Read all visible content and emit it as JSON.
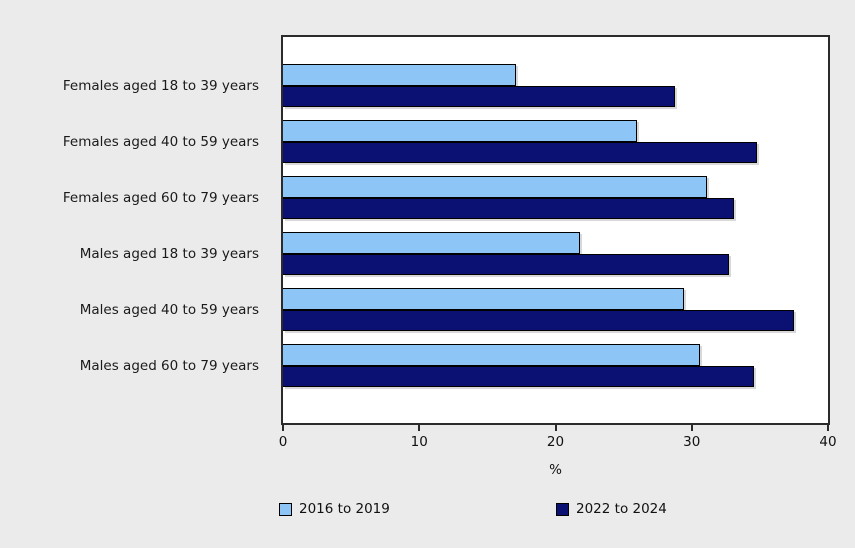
{
  "chart_data": {
    "type": "bar",
    "orientation": "horizontal",
    "title": "",
    "categories": [
      "Females aged 18 to 39 years",
      "Females aged 40 to 59 years",
      "Females aged 60 to 79 years",
      "Males aged 18 to 39 years",
      "Males aged 40 to 59 years",
      "Males aged 60 to 79 years"
    ],
    "series": [
      {
        "name": "2016 to 2019",
        "color": "#8cc5f6",
        "values": [
          17.1,
          26.0,
          31.1,
          21.8,
          29.4,
          30.6
        ]
      },
      {
        "name": "2022 to 2024",
        "color": "#0a1172",
        "values": [
          28.8,
          34.8,
          33.1,
          32.7,
          37.5,
          34.6
        ]
      }
    ],
    "xlabel": "%",
    "xlim": [
      0,
      40
    ],
    "xticks": [
      "0",
      "10",
      "20",
      "30",
      "40"
    ],
    "grid": false,
    "legend_position": "bottom",
    "plot_background": "#ffffff",
    "page_background": "#ebebeb",
    "axis_color": "#2b2b2b",
    "bar_border_color": "#000000"
  },
  "legend": {
    "items": [
      {
        "label": "2016 to 2019",
        "color": "#8cc5f6"
      },
      {
        "label": "2022 to 2024",
        "color": "#0a1172"
      }
    ]
  }
}
